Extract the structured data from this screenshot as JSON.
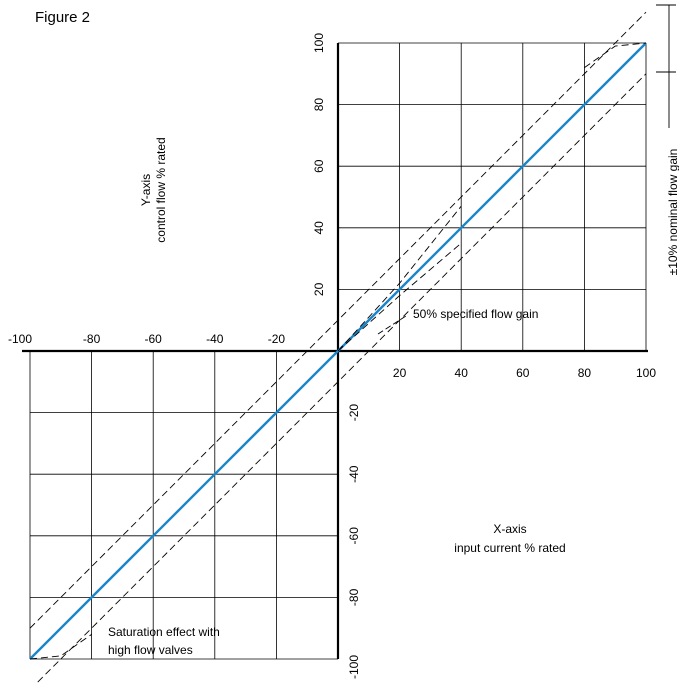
{
  "figure_label": "Figure 2",
  "chart_data": {
    "type": "line",
    "x_axis": {
      "label_line1": "X-axis",
      "label_line2": "input current % rated",
      "range": [
        -100,
        100
      ],
      "tick_labels_positive": [
        "20",
        "40",
        "60",
        "80",
        "100"
      ],
      "tick_labels_negative": [
        "-100",
        "-80",
        "-60",
        "-40",
        "-20"
      ]
    },
    "y_axis": {
      "label_line1": "Y-axis",
      "label_line2": "control flow % rated",
      "range": [
        -100,
        100
      ],
      "tick_labels_positive": [
        "20",
        "40",
        "60",
        "80",
        "100"
      ],
      "tick_labels_negative": [
        "-20",
        "-40",
        "-60",
        "-80",
        "-100"
      ]
    },
    "grid": true,
    "series": [
      {
        "role": "nominal",
        "color": "#1a85c8",
        "style": "solid",
        "x": [
          -100,
          -80,
          -60,
          -40,
          -20,
          0,
          20,
          40,
          60,
          80,
          100
        ],
        "y": [
          -100,
          -80,
          -60,
          -40,
          -20,
          0,
          20,
          40,
          60,
          80,
          100
        ]
      },
      {
        "role": "upper tolerance",
        "color": "#000000",
        "style": "dashed",
        "x": [
          -100,
          100
        ],
        "y": [
          -90,
          110
        ]
      },
      {
        "role": "lower tolerance",
        "color": "#000000",
        "style": "dashed",
        "x": [
          -100,
          100
        ],
        "y": [
          -110,
          90
        ]
      },
      {
        "role": "50% specified flow gain (upper)",
        "color": "#000000",
        "style": "dashed",
        "x": [
          0,
          20,
          40
        ],
        "y": [
          0,
          22,
          47
        ]
      },
      {
        "role": "50% specified flow gain (lower)",
        "color": "#000000",
        "style": "dashed",
        "x": [
          0,
          20,
          40
        ],
        "y": [
          0,
          18,
          35
        ]
      },
      {
        "role": "saturation (top)",
        "color": "#000000",
        "style": "dashed",
        "x": [
          80,
          90,
          100
        ],
        "y": [
          92,
          99,
          100
        ]
      },
      {
        "role": "saturation (bottom)",
        "color": "#000000",
        "style": "dashed",
        "x": [
          -100,
          -90,
          -80
        ],
        "y": [
          -100,
          -99,
          -92
        ]
      }
    ],
    "annotations": {
      "tolerance": "±10% nominal flow gain",
      "flow_gain": "50% specified flow gain",
      "saturation_line1": "Saturation effect with",
      "saturation_line2": "high flow valves"
    }
  }
}
